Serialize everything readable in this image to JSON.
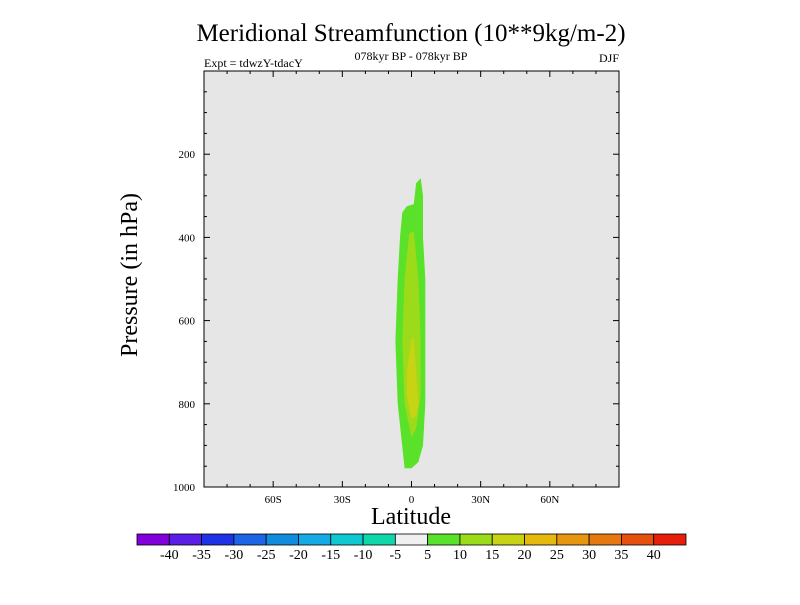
{
  "chart_data": {
    "type": "heatmap",
    "title": "Meridional Streamfunction (10**9kg/m-2)",
    "subtitle_left": "Expt = tdwzY-tdacY",
    "subtitle_center": "078kyr BP - 078kyr BP",
    "subtitle_right": "DJF",
    "xlabel": "Latitude",
    "ylabel": "Pressure (in hPa)",
    "xlim": [
      -90,
      90
    ],
    "ylim": [
      1000,
      0
    ],
    "y_reversed": true,
    "x_ticks": [
      {
        "value": -60,
        "label": "60S"
      },
      {
        "value": -30,
        "label": "30S"
      },
      {
        "value": 0,
        "label": "0"
      },
      {
        "value": 30,
        "label": "30N"
      },
      {
        "value": 60,
        "label": "60N"
      }
    ],
    "y_ticks": [
      {
        "value": 200,
        "label": "200"
      },
      {
        "value": 400,
        "label": "400"
      },
      {
        "value": 600,
        "label": "600"
      },
      {
        "value": 800,
        "label": "800"
      },
      {
        "value": 1000,
        "label": "1000"
      }
    ],
    "background_color": "#e6e6e6",
    "contour_regions": [
      {
        "level": "5 to 10",
        "color": "#5ae12a",
        "outline": [
          [
            -3,
            955
          ],
          [
            -6,
            800
          ],
          [
            -7,
            650
          ],
          [
            -6,
            500
          ],
          [
            -5,
            400
          ],
          [
            -4,
            340
          ],
          [
            -2,
            325
          ],
          [
            1,
            320
          ],
          [
            2,
            270
          ],
          [
            4,
            258
          ],
          [
            5,
            300
          ],
          [
            5,
            400
          ],
          [
            6,
            500
          ],
          [
            6,
            650
          ],
          [
            6,
            800
          ],
          [
            5,
            900
          ],
          [
            3,
            940
          ],
          [
            0,
            955
          ]
        ]
      },
      {
        "level": "10 to 15",
        "color": "#9cdb19",
        "outline": [
          [
            0,
            880
          ],
          [
            -3,
            800
          ],
          [
            -4,
            650
          ],
          [
            -3,
            500
          ],
          [
            -1,
            390
          ],
          [
            1,
            385
          ],
          [
            3,
            500
          ],
          [
            4,
            650
          ],
          [
            4,
            780
          ],
          [
            2,
            860
          ]
        ]
      },
      {
        "level": "15 to 20",
        "color": "#c8d313",
        "outline": [
          [
            0,
            835
          ],
          [
            -2,
            780
          ],
          [
            -2,
            720
          ],
          [
            0,
            645
          ],
          [
            1,
            640
          ],
          [
            2,
            720
          ],
          [
            3,
            800
          ],
          [
            2,
            830
          ]
        ]
      }
    ],
    "colorbar": {
      "labels": [
        "-40",
        "-35",
        "-30",
        "-25",
        "-20",
        "-15",
        "-10",
        "-5",
        "5",
        "10",
        "15",
        "20",
        "25",
        "30",
        "35",
        "40"
      ],
      "colors": [
        "#8200dc",
        "#5a1ee6",
        "#1e32e6",
        "#1e64e6",
        "#0f8cdc",
        "#14aae6",
        "#0fc8d2",
        "#0fd7aa",
        "#f0f0f0",
        "#5ae12a",
        "#9cdb19",
        "#c8d313",
        "#e6b90f",
        "#e6960f",
        "#e6780f",
        "#e6500f",
        "#e61e0a"
      ]
    }
  }
}
